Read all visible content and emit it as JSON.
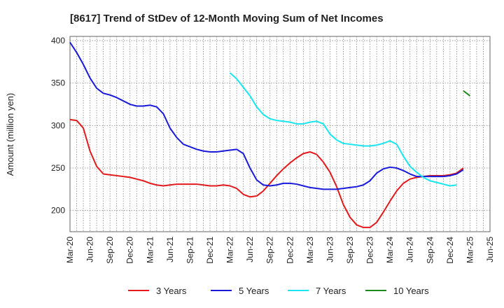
{
  "chart_data": {
    "type": "line",
    "title": "[8617]  Trend of StDev of 12-Month Moving Sum of Net Incomes",
    "ylabel": "Amount (million yen)",
    "xlabel": "",
    "ylim": [
      175,
      405
    ],
    "yticks": [
      200,
      250,
      300,
      350,
      400
    ],
    "x_range": [
      "2020-03",
      "2025-06"
    ],
    "grid": true,
    "legend_position": "bottom",
    "x_tick_labels": [
      "Mar-20",
      "Jun-20",
      "Sep-20",
      "Dec-20",
      "Mar-21",
      "Jun-21",
      "Sep-21",
      "Dec-21",
      "Mar-22",
      "Jun-22",
      "Sep-22",
      "Dec-22",
      "Mar-23",
      "Jun-23",
      "Sep-23",
      "Dec-23",
      "Mar-24",
      "Jun-24",
      "Sep-24",
      "Dec-24",
      "Mar-25",
      "Jun-25"
    ],
    "series": [
      {
        "name": "3 Years",
        "color": "#e31a1c",
        "start": "2020-03",
        "values": [
          307,
          306,
          297,
          270,
          252,
          243,
          242,
          241,
          240,
          239,
          237,
          235,
          232,
          230,
          229,
          230,
          231,
          231,
          231,
          231,
          230,
          229,
          229,
          230,
          229,
          226,
          219,
          216,
          217,
          223,
          232,
          241,
          249,
          256,
          262,
          267,
          269,
          266,
          257,
          245,
          228,
          207,
          192,
          183,
          180,
          180,
          186,
          198,
          211,
          223,
          232,
          237,
          239,
          240,
          241,
          241,
          241,
          242,
          244,
          250
        ]
      },
      {
        "name": "5 Years",
        "color": "#1a1adb",
        "start": "2020-03",
        "values": [
          398,
          386,
          372,
          356,
          344,
          338,
          336,
          333,
          329,
          325,
          323,
          323,
          324,
          322,
          314,
          297,
          286,
          278,
          275,
          272,
          270,
          269,
          269,
          270,
          271,
          272,
          267,
          250,
          236,
          230,
          229,
          230,
          232,
          232,
          231,
          229,
          227,
          226,
          225,
          225,
          225,
          226,
          227,
          228,
          230,
          235,
          244,
          249,
          251,
          250,
          247,
          243,
          240,
          240,
          240,
          240,
          240,
          241,
          243,
          248
        ]
      },
      {
        "name": "7 Years",
        "color": "#19e6ee",
        "start": "2022-03",
        "values": [
          362,
          355,
          345,
          335,
          322,
          313,
          308,
          306,
          305,
          304,
          302,
          302,
          304,
          305,
          302,
          290,
          283,
          279,
          278,
          277,
          276,
          276,
          277,
          279,
          282,
          278,
          264,
          252,
          245,
          239,
          235,
          233,
          231,
          229,
          230
        ]
      },
      {
        "name": "10 Years",
        "color": "#1d8a1d",
        "start": "2025-02",
        "values": [
          341,
          335
        ]
      }
    ]
  }
}
